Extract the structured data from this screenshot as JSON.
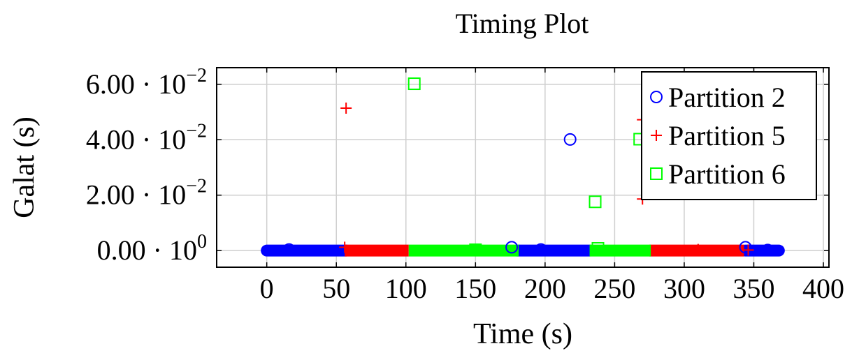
{
  "chart_data": {
    "type": "scatter",
    "title": "Timing Plot",
    "xlabel": "Time (s)",
    "ylabel": "Galat (s)",
    "xlim": [
      -36,
      404
    ],
    "ylim": [
      -0.006,
      0.066
    ],
    "grid": true,
    "legend_position": "top-right",
    "x_ticks": [
      {
        "value": 0,
        "label": "0"
      },
      {
        "value": 50,
        "label": "50"
      },
      {
        "value": 100,
        "label": "100"
      },
      {
        "value": 150,
        "label": "150"
      },
      {
        "value": 200,
        "label": "200"
      },
      {
        "value": 250,
        "label": "250"
      },
      {
        "value": 300,
        "label": "300"
      },
      {
        "value": 350,
        "label": "350"
      },
      {
        "value": 400,
        "label": "400"
      }
    ],
    "y_ticks": [
      {
        "value": 0,
        "mantissa": "0.00",
        "exponent": "0"
      },
      {
        "value": 0.02,
        "mantissa": "2.00",
        "exponent": "−2"
      },
      {
        "value": 0.04,
        "mantissa": "4.00",
        "exponent": "−2"
      },
      {
        "value": 0.06,
        "mantissa": "6.00",
        "exponent": "−2"
      }
    ],
    "series": [
      {
        "name": "Partition 2",
        "marker": "circle",
        "color": "#0000ff",
        "dense_ranges": [
          [
            0,
            57
          ],
          [
            180,
            232
          ],
          [
            344,
            368
          ]
        ],
        "points": [
          [
            16,
            0.0004
          ],
          [
            176,
            0.0012
          ],
          [
            197,
            0.0004
          ],
          [
            218,
            0.0401
          ],
          [
            344,
            0.0012
          ],
          [
            360,
            0.0002
          ]
        ]
      },
      {
        "name": "Partition 5",
        "marker": "plus",
        "color": "#ff0000",
        "dense_ranges": [
          [
            56,
            102
          ],
          [
            275,
            343
          ]
        ],
        "points": [
          [
            57,
            0.0514
          ],
          [
            56,
            0.0012
          ],
          [
            270,
            0.0186
          ],
          [
            270,
            0.0472
          ],
          [
            310,
            0.0004
          ],
          [
            346,
            0.0002
          ]
        ]
      },
      {
        "name": "Partition 6",
        "marker": "square",
        "color": "#00ff00",
        "dense_ranges": [
          [
            102,
            181
          ],
          [
            232,
            276
          ]
        ],
        "points": [
          [
            106,
            0.0602
          ],
          [
            236,
            0.0176
          ],
          [
            268,
            0.0402
          ],
          [
            238,
            0.0008
          ],
          [
            150,
            0.0003
          ]
        ]
      }
    ]
  }
}
